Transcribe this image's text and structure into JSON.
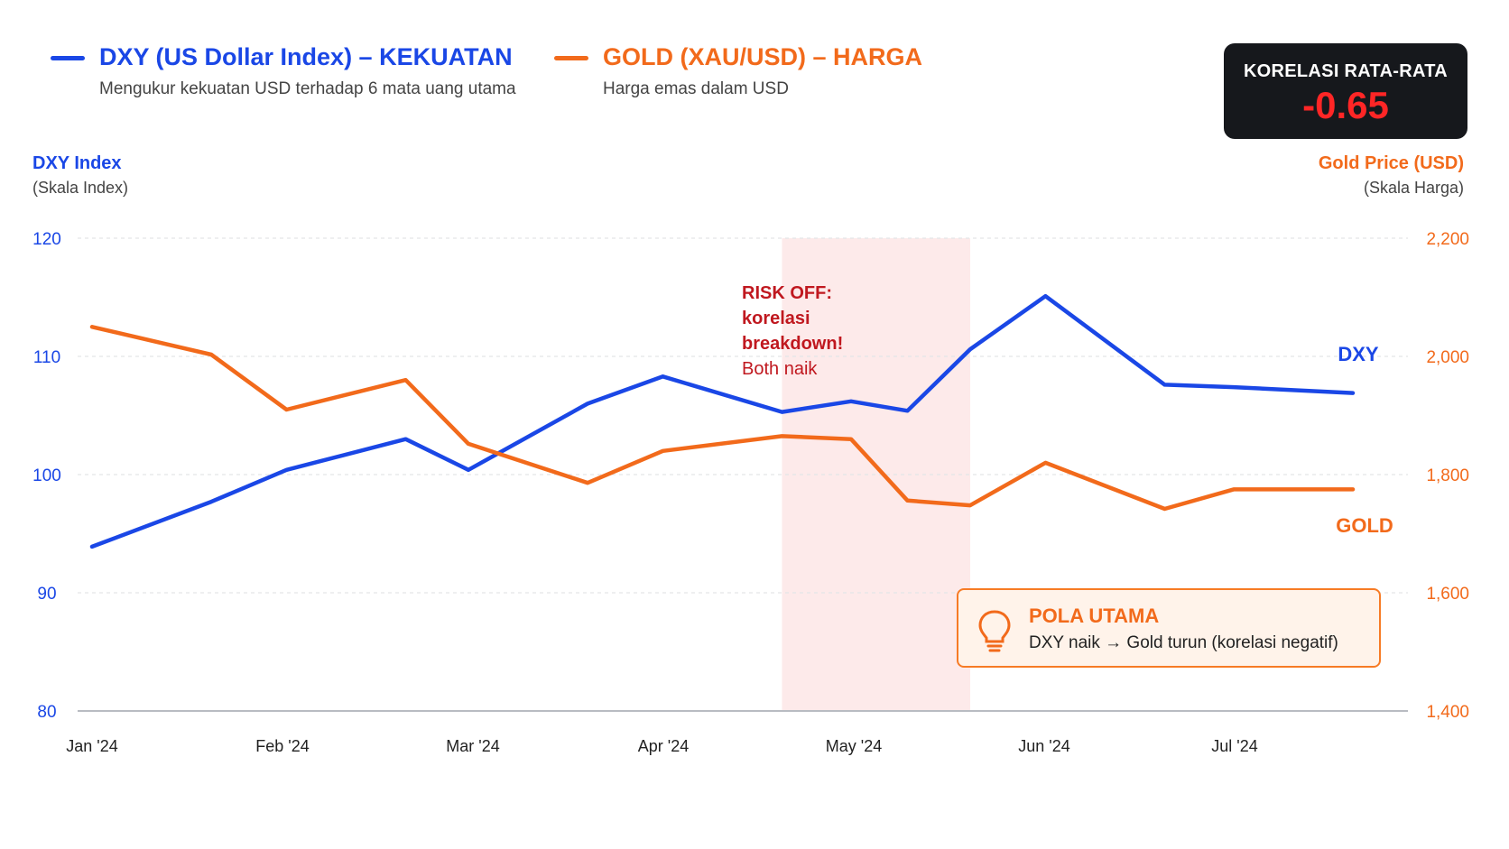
{
  "legend": {
    "dxy": {
      "title": "DXY (US Dollar Index) – KEKUATAN",
      "subtitle": "Mengukur kekuatan USD terhadap 6 mata uang utama",
      "color": "#1a47e6"
    },
    "gold": {
      "title": "GOLD (XAU/USD) – HARGA",
      "subtitle": "Harga emas dalam USD",
      "color": "#f26a1b"
    }
  },
  "correlation": {
    "label": "KORELASI RATA-RATA",
    "value": "-0.65",
    "value_color": "#ff2626"
  },
  "axes": {
    "left": {
      "title": "DXY Index",
      "subtitle": "(Skala Index)"
    },
    "right": {
      "title": "Gold Price (USD)",
      "subtitle": "(Skala Harga)"
    }
  },
  "annotation": {
    "lines": [
      "RISK OFF:",
      "korelasi",
      "breakdown!"
    ],
    "note": "Both naik",
    "color": "#c0181f"
  },
  "pattern": {
    "title": "POLA UTAMA",
    "text": "DXY naik → Gold turun (korelasi negatif)",
    "icon": "lightbulb-icon"
  },
  "chart_data": {
    "type": "line",
    "x_ticks": [
      "Jan '24",
      "Feb '24",
      "Mar '24",
      "Apr '24",
      "May '24",
      "Jun '24",
      "Jul '24"
    ],
    "y_left": {
      "ylim": [
        80,
        120
      ],
      "ticks": [
        "80",
        "90",
        "100",
        "110",
        "120"
      ]
    },
    "y_right": {
      "ylim": [
        1400,
        2200
      ],
      "ticks": [
        "1,400",
        "1,600",
        "1,800",
        "2,000",
        "2,200"
      ]
    },
    "highlight": {
      "from": "2024-04-20",
      "to": "2024-05-20"
    },
    "grid": true,
    "series": [
      {
        "name": "DXY",
        "axis": "left",
        "color": "#1a47e6",
        "x": [
          "2024-01-01",
          "2024-01-20",
          "2024-02-01",
          "2024-02-20",
          "2024-03-01",
          "2024-03-20",
          "2024-04-01",
          "2024-04-20",
          "2024-05-01",
          "2024-05-10",
          "2024-05-20",
          "2024-06-01",
          "2024-06-20",
          "2024-07-01",
          "2024-07-20"
        ],
        "values": [
          93.9,
          97.7,
          100.4,
          103.0,
          100.4,
          106.0,
          108.3,
          105.3,
          106.2,
          105.4,
          110.6,
          115.1,
          107.6,
          107.4,
          106.9
        ]
      },
      {
        "name": "GOLD",
        "axis": "right",
        "color": "#f26a1b",
        "x": [
          "2024-01-01",
          "2024-01-20",
          "2024-02-01",
          "2024-02-20",
          "2024-03-01",
          "2024-03-20",
          "2024-04-01",
          "2024-04-20",
          "2024-05-01",
          "2024-05-10",
          "2024-05-20",
          "2024-06-01",
          "2024-06-20",
          "2024-07-01",
          "2024-07-20"
        ],
        "values": [
          2050,
          2003,
          1910,
          1960,
          1852,
          1786,
          1840,
          1865,
          1860,
          1756,
          1748,
          1820,
          1742,
          1775,
          1775
        ]
      }
    ]
  }
}
